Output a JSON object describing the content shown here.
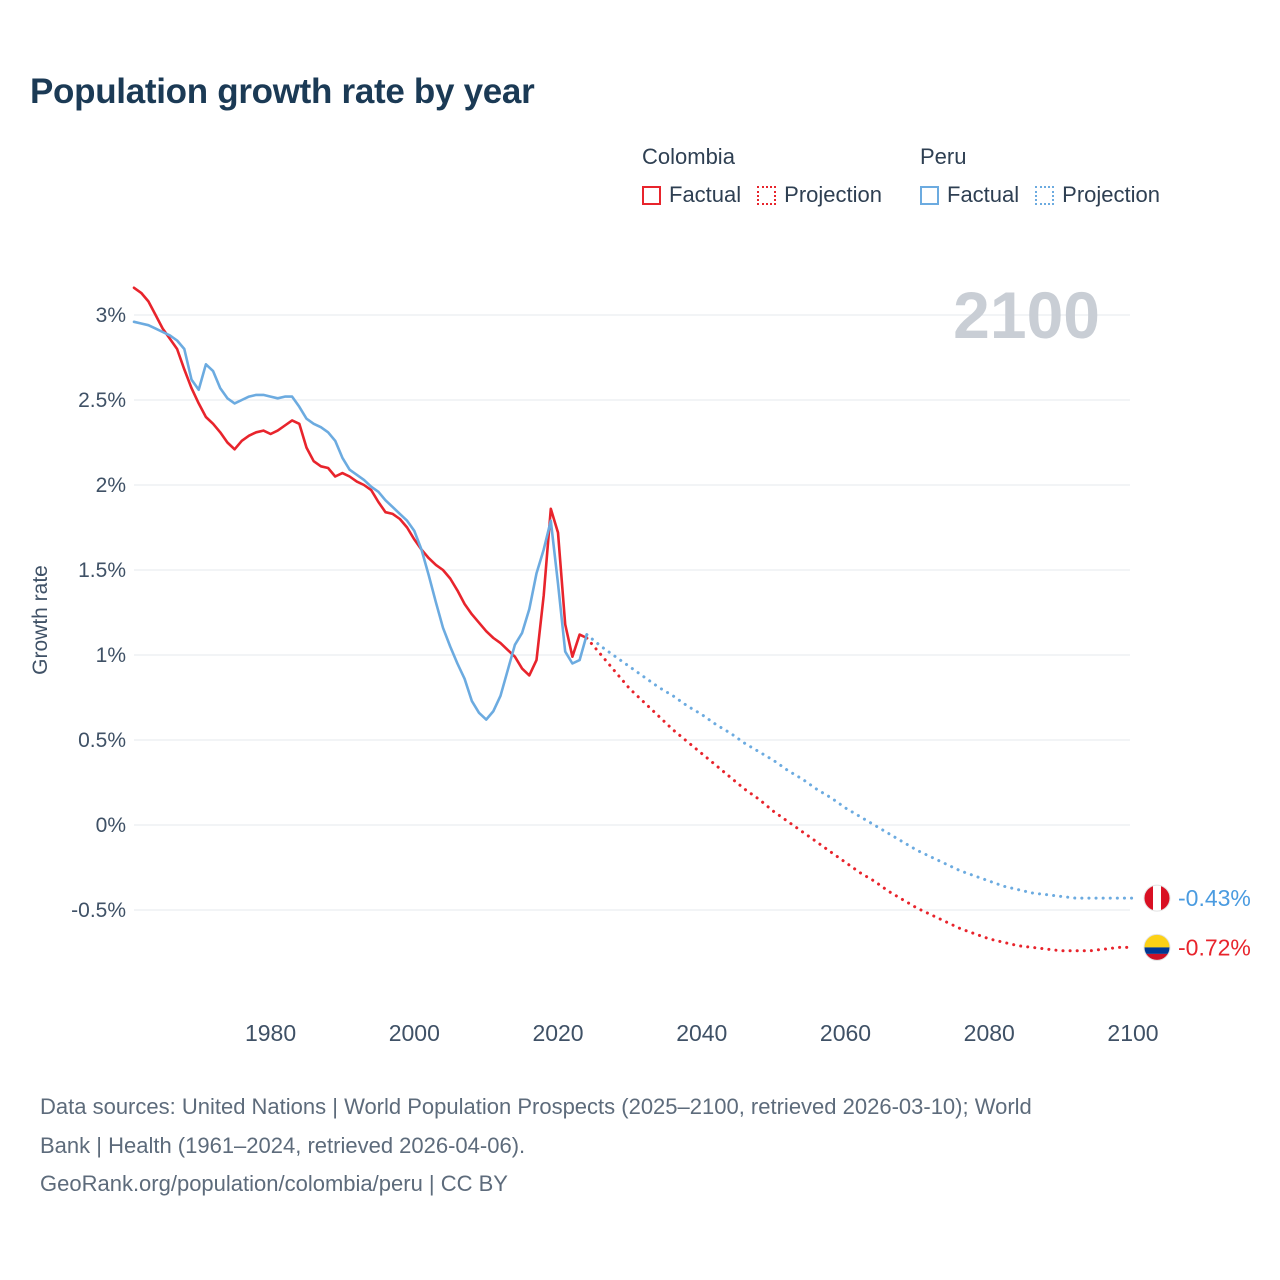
{
  "title": "Population growth rate by year",
  "watermark": "2100",
  "colors": {
    "colombia": "#e8242c",
    "peru": "#6cabe0",
    "grid": "#e5e8ec",
    "axis_text": "#3f5166",
    "watermark": "#c9ced5"
  },
  "legend": {
    "groups": [
      {
        "country": "Colombia",
        "color": "#e8242c",
        "items": [
          {
            "label": "Factual",
            "style": "solid"
          },
          {
            "label": "Projection",
            "style": "dotted"
          }
        ]
      },
      {
        "country": "Peru",
        "color": "#6cabe0",
        "items": [
          {
            "label": "Factual",
            "style": "solid"
          },
          {
            "label": "Projection",
            "style": "dotted"
          }
        ]
      }
    ]
  },
  "axes": {
    "y_label": "Growth rate",
    "x_ticks": [
      1980,
      2000,
      2020,
      2040,
      2060,
      2080,
      2100
    ],
    "y_ticks": [
      {
        "v": 3,
        "label": "3%"
      },
      {
        "v": 2.5,
        "label": "2.5%"
      },
      {
        "v": 2,
        "label": "2%"
      },
      {
        "v": 1.5,
        "label": "1.5%"
      },
      {
        "v": 1,
        "label": "1%"
      },
      {
        "v": 0.5,
        "label": "0.5%"
      },
      {
        "v": 0,
        "label": "0%"
      },
      {
        "v": -0.5,
        "label": "-0.5%"
      }
    ]
  },
  "chart_data": {
    "type": "line",
    "title": "Population growth rate by year",
    "xlabel": "",
    "ylabel": "Growth rate",
    "xlim": [
      1961,
      2100
    ],
    "ylim": [
      -0.95,
      3.25
    ],
    "grid": "horizontal",
    "legend_position": "top",
    "series": [
      {
        "name": "Colombia Factual",
        "color": "#e8242c",
        "style": "solid",
        "points": [
          [
            1961,
            3.16
          ],
          [
            1962,
            3.13
          ],
          [
            1963,
            3.08
          ],
          [
            1964,
            3.0
          ],
          [
            1965,
            2.92
          ],
          [
            1966,
            2.86
          ],
          [
            1967,
            2.8
          ],
          [
            1968,
            2.68
          ],
          [
            1969,
            2.57
          ],
          [
            1970,
            2.48
          ],
          [
            1971,
            2.4
          ],
          [
            1972,
            2.36
          ],
          [
            1973,
            2.31
          ],
          [
            1974,
            2.25
          ],
          [
            1975,
            2.21
          ],
          [
            1976,
            2.26
          ],
          [
            1977,
            2.29
          ],
          [
            1978,
            2.31
          ],
          [
            1979,
            2.32
          ],
          [
            1980,
            2.3
          ],
          [
            1981,
            2.32
          ],
          [
            1982,
            2.35
          ],
          [
            1983,
            2.38
          ],
          [
            1984,
            2.36
          ],
          [
            1985,
            2.22
          ],
          [
            1986,
            2.14
          ],
          [
            1987,
            2.11
          ],
          [
            1988,
            2.1
          ],
          [
            1989,
            2.05
          ],
          [
            1990,
            2.07
          ],
          [
            1991,
            2.05
          ],
          [
            1992,
            2.02
          ],
          [
            1993,
            2.0
          ],
          [
            1994,
            1.97
          ],
          [
            1995,
            1.9
          ],
          [
            1996,
            1.84
          ],
          [
            1997,
            1.83
          ],
          [
            1998,
            1.8
          ],
          [
            1999,
            1.75
          ],
          [
            2000,
            1.68
          ],
          [
            2001,
            1.62
          ],
          [
            2002,
            1.57
          ],
          [
            2003,
            1.53
          ],
          [
            2004,
            1.5
          ],
          [
            2005,
            1.45
          ],
          [
            2006,
            1.38
          ],
          [
            2007,
            1.3
          ],
          [
            2008,
            1.24
          ],
          [
            2009,
            1.19
          ],
          [
            2010,
            1.14
          ],
          [
            2011,
            1.1
          ],
          [
            2012,
            1.07
          ],
          [
            2013,
            1.03
          ],
          [
            2014,
            0.99
          ],
          [
            2015,
            0.92
          ],
          [
            2016,
            0.88
          ],
          [
            2017,
            0.97
          ],
          [
            2018,
            1.35
          ],
          [
            2019,
            1.86
          ],
          [
            2020,
            1.72
          ],
          [
            2021,
            1.18
          ],
          [
            2022,
            0.99
          ],
          [
            2023,
            1.12
          ],
          [
            2024,
            1.1
          ]
        ]
      },
      {
        "name": "Colombia Projection",
        "color": "#e8242c",
        "style": "dotted",
        "points": [
          [
            2024,
            1.1
          ],
          [
            2026,
            1.0
          ],
          [
            2028,
            0.9
          ],
          [
            2030,
            0.8
          ],
          [
            2032,
            0.72
          ],
          [
            2034,
            0.64
          ],
          [
            2036,
            0.56
          ],
          [
            2038,
            0.49
          ],
          [
            2040,
            0.42
          ],
          [
            2042,
            0.35
          ],
          [
            2044,
            0.28
          ],
          [
            2046,
            0.21
          ],
          [
            2048,
            0.15
          ],
          [
            2050,
            0.08
          ],
          [
            2052,
            0.02
          ],
          [
            2054,
            -0.04
          ],
          [
            2056,
            -0.1
          ],
          [
            2058,
            -0.16
          ],
          [
            2060,
            -0.22
          ],
          [
            2062,
            -0.28
          ],
          [
            2064,
            -0.33
          ],
          [
            2066,
            -0.39
          ],
          [
            2068,
            -0.44
          ],
          [
            2070,
            -0.49
          ],
          [
            2072,
            -0.53
          ],
          [
            2074,
            -0.57
          ],
          [
            2076,
            -0.61
          ],
          [
            2078,
            -0.64
          ],
          [
            2080,
            -0.67
          ],
          [
            2082,
            -0.69
          ],
          [
            2084,
            -0.71
          ],
          [
            2086,
            -0.72
          ],
          [
            2088,
            -0.73
          ],
          [
            2090,
            -0.74
          ],
          [
            2092,
            -0.74
          ],
          [
            2094,
            -0.74
          ],
          [
            2096,
            -0.73
          ],
          [
            2098,
            -0.72
          ],
          [
            2100,
            -0.72
          ]
        ]
      },
      {
        "name": "Peru Factual",
        "color": "#6cabe0",
        "style": "solid",
        "points": [
          [
            1961,
            2.96
          ],
          [
            1962,
            2.95
          ],
          [
            1963,
            2.94
          ],
          [
            1964,
            2.92
          ],
          [
            1965,
            2.9
          ],
          [
            1966,
            2.88
          ],
          [
            1967,
            2.85
          ],
          [
            1968,
            2.8
          ],
          [
            1969,
            2.62
          ],
          [
            1970,
            2.56
          ],
          [
            1971,
            2.71
          ],
          [
            1972,
            2.67
          ],
          [
            1973,
            2.57
          ],
          [
            1974,
            2.51
          ],
          [
            1975,
            2.48
          ],
          [
            1976,
            2.5
          ],
          [
            1977,
            2.52
          ],
          [
            1978,
            2.53
          ],
          [
            1979,
            2.53
          ],
          [
            1980,
            2.52
          ],
          [
            1981,
            2.51
          ],
          [
            1982,
            2.52
          ],
          [
            1983,
            2.52
          ],
          [
            1984,
            2.46
          ],
          [
            1985,
            2.39
          ],
          [
            1986,
            2.36
          ],
          [
            1987,
            2.34
          ],
          [
            1988,
            2.31
          ],
          [
            1989,
            2.26
          ],
          [
            1990,
            2.16
          ],
          [
            1991,
            2.09
          ],
          [
            1992,
            2.06
          ],
          [
            1993,
            2.03
          ],
          [
            1994,
            1.99
          ],
          [
            1995,
            1.96
          ],
          [
            1996,
            1.91
          ],
          [
            1997,
            1.87
          ],
          [
            1998,
            1.83
          ],
          [
            1999,
            1.79
          ],
          [
            2000,
            1.73
          ],
          [
            2001,
            1.62
          ],
          [
            2002,
            1.47
          ],
          [
            2003,
            1.31
          ],
          [
            2004,
            1.16
          ],
          [
            2005,
            1.05
          ],
          [
            2006,
            0.95
          ],
          [
            2007,
            0.86
          ],
          [
            2008,
            0.73
          ],
          [
            2009,
            0.66
          ],
          [
            2010,
            0.62
          ],
          [
            2011,
            0.67
          ],
          [
            2012,
            0.76
          ],
          [
            2013,
            0.91
          ],
          [
            2014,
            1.06
          ],
          [
            2015,
            1.13
          ],
          [
            2016,
            1.27
          ],
          [
            2017,
            1.48
          ],
          [
            2018,
            1.62
          ],
          [
            2019,
            1.79
          ],
          [
            2020,
            1.42
          ],
          [
            2021,
            1.02
          ],
          [
            2022,
            0.95
          ],
          [
            2023,
            0.97
          ],
          [
            2024,
            1.12
          ]
        ]
      },
      {
        "name": "Peru Projection",
        "color": "#6cabe0",
        "style": "dotted",
        "points": [
          [
            2024,
            1.12
          ],
          [
            2026,
            1.05
          ],
          [
            2028,
            0.99
          ],
          [
            2030,
            0.93
          ],
          [
            2032,
            0.87
          ],
          [
            2034,
            0.81
          ],
          [
            2036,
            0.76
          ],
          [
            2038,
            0.7
          ],
          [
            2040,
            0.65
          ],
          [
            2042,
            0.59
          ],
          [
            2044,
            0.54
          ],
          [
            2046,
            0.48
          ],
          [
            2048,
            0.43
          ],
          [
            2050,
            0.38
          ],
          [
            2052,
            0.32
          ],
          [
            2054,
            0.27
          ],
          [
            2056,
            0.21
          ],
          [
            2058,
            0.16
          ],
          [
            2060,
            0.1
          ],
          [
            2062,
            0.05
          ],
          [
            2064,
            0.0
          ],
          [
            2066,
            -0.05
          ],
          [
            2068,
            -0.1
          ],
          [
            2070,
            -0.15
          ],
          [
            2072,
            -0.19
          ],
          [
            2074,
            -0.23
          ],
          [
            2076,
            -0.27
          ],
          [
            2078,
            -0.3
          ],
          [
            2080,
            -0.33
          ],
          [
            2082,
            -0.36
          ],
          [
            2084,
            -0.38
          ],
          [
            2086,
            -0.4
          ],
          [
            2088,
            -0.41
          ],
          [
            2090,
            -0.42
          ],
          [
            2092,
            -0.43
          ],
          [
            2094,
            -0.43
          ],
          [
            2096,
            -0.43
          ],
          [
            2098,
            -0.43
          ],
          [
            2100,
            -0.43
          ]
        ]
      }
    ]
  },
  "end_markers": [
    {
      "name": "peru",
      "flag": "peru",
      "value": -0.43,
      "label": "-0.43%",
      "text_color": "#4a9be0"
    },
    {
      "name": "colombia",
      "flag": "colombia",
      "value": -0.72,
      "label": "-0.72%",
      "text_color": "#e8242c"
    }
  ],
  "footer": {
    "line1": "Data sources: United Nations | World Population Prospects (2025–2100, retrieved 2026-03-10); World",
    "line2": "Bank | Health (1961–2024, retrieved 2026-04-06).",
    "line3": "GeoRank.org/population/colombia/peru | CC BY"
  }
}
